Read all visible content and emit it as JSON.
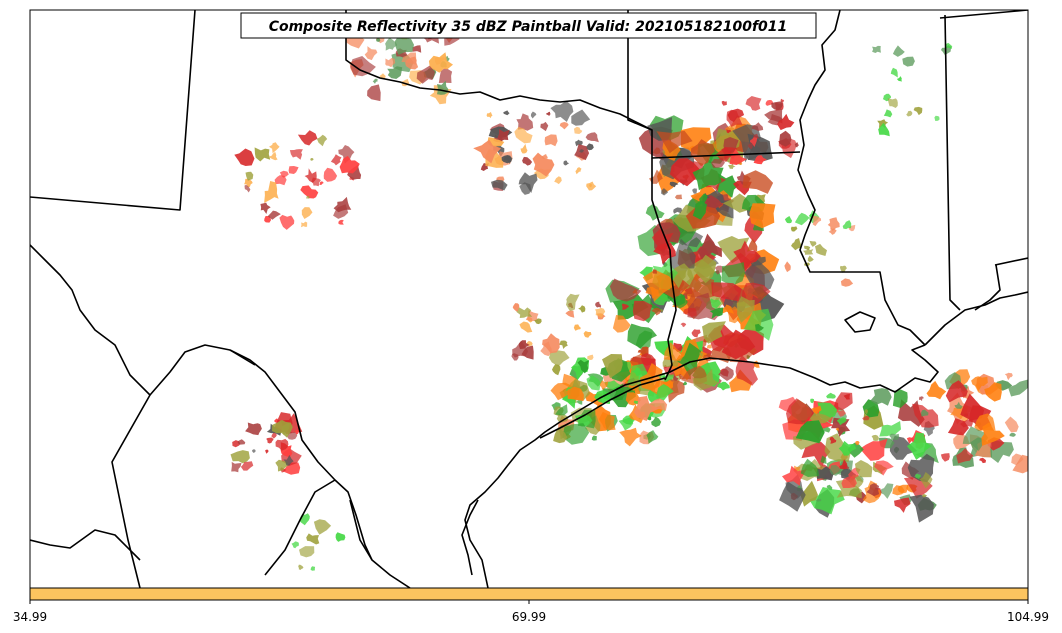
{
  "title": "Composite Reflectivity 35 dBZ Paintball Valid: 202105182100f011",
  "colorbar": {
    "color": "#fcc45f",
    "min": 34.99,
    "max": 104.99,
    "ticks": [
      "34.99",
      "69.99",
      "104.99"
    ]
  },
  "palette": [
    "#d62728",
    "#ff7f0e",
    "#fdae4b",
    "#f58a5e",
    "#a83a3a",
    "#5a9a5a",
    "#2ca02c",
    "#44d844",
    "#9ea13a",
    "#555555",
    "#ff3f3f",
    "#c84b1e"
  ]
}
